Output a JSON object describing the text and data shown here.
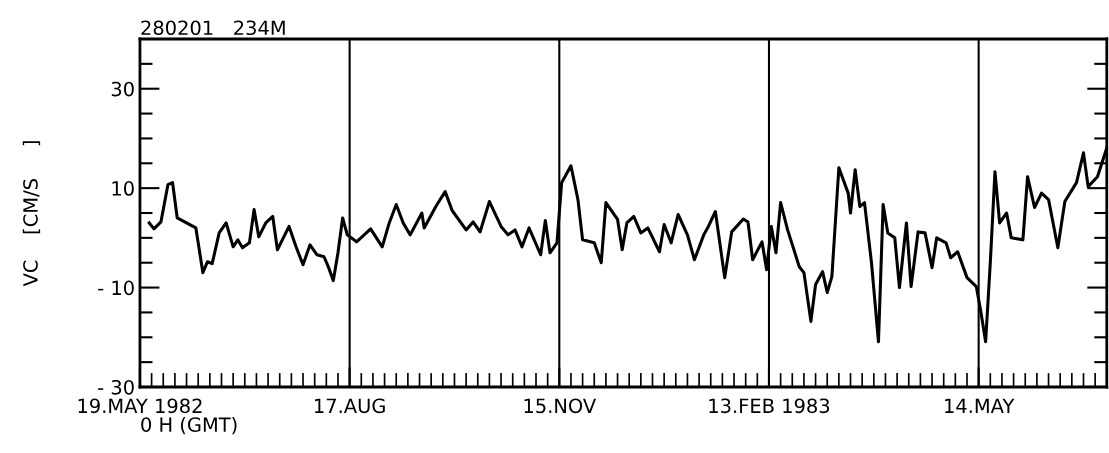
{
  "chart_data": {
    "type": "line",
    "title": "280201   234M",
    "xlabel": "0 H (GMT)",
    "ylabel": "VC    [CM/S     ]",
    "xlim": [
      "1982-05-19",
      "1983-07-08"
    ],
    "ylim": [
      -30,
      40
    ],
    "yticks": [
      {
        "value": -30,
        "label": "- 30"
      },
      {
        "value": -25,
        "label": null
      },
      {
        "value": -20,
        "label": null
      },
      {
        "value": -15,
        "label": null
      },
      {
        "value": -10,
        "label": "- 10"
      },
      {
        "value": -5,
        "label": null
      },
      {
        "value": 0,
        "label": null
      },
      {
        "value": 5,
        "label": null
      },
      10,
      {
        "value": 15,
        "label": null
      },
      {
        "value": 20,
        "label": null
      },
      {
        "value": 25,
        "label": null
      },
      30,
      {
        "value": 35,
        "label": null
      }
    ],
    "xticks": [
      {
        "value": "1982-05-19",
        "label": "19.MAY 1982"
      },
      {
        "value": "1982-05-24",
        "label": null
      },
      {
        "value": "1982-05-29",
        "label": null
      },
      {
        "value": "1982-06-03",
        "label": null
      },
      {
        "value": "1982-06-08",
        "label": null
      },
      {
        "value": "1982-06-13",
        "label": null
      },
      {
        "value": "1982-06-18",
        "label": null
      },
      {
        "value": "1982-06-23",
        "label": null
      },
      {
        "value": "1982-06-28",
        "label": null
      },
      {
        "value": "1982-07-03",
        "label": null
      },
      {
        "value": "1982-07-08",
        "label": null
      },
      {
        "value": "1982-07-13",
        "label": null
      },
      {
        "value": "1982-07-18",
        "label": null
      },
      {
        "value": "1982-07-23",
        "label": null
      },
      {
        "value": "1982-07-28",
        "label": null
      },
      {
        "value": "1982-08-02",
        "label": null
      },
      {
        "value": "1982-08-07",
        "label": null
      },
      {
        "value": "1982-08-12",
        "label": null
      },
      {
        "value": "1982-08-17",
        "label": "17.AUG"
      },
      {
        "value": "1982-08-22",
        "label": null
      },
      {
        "value": "1982-08-27",
        "label": null
      },
      {
        "value": "1982-09-01",
        "label": null
      },
      {
        "value": "1982-09-06",
        "label": null
      },
      {
        "value": "1982-09-11",
        "label": null
      },
      {
        "value": "1982-09-16",
        "label": null
      },
      {
        "value": "1982-09-21",
        "label": null
      },
      {
        "value": "1982-09-26",
        "label": null
      },
      {
        "value": "1982-10-01",
        "label": null
      },
      {
        "value": "1982-10-06",
        "label": null
      },
      {
        "value": "1982-10-11",
        "label": null
      },
      {
        "value": "1982-10-16",
        "label": null
      },
      {
        "value": "1982-10-21",
        "label": null
      },
      {
        "value": "1982-10-26",
        "label": null
      },
      {
        "value": "1982-10-31",
        "label": null
      },
      {
        "value": "1982-11-05",
        "label": null
      },
      {
        "value": "1982-11-10",
        "label": null
      },
      {
        "value": "1982-11-15",
        "label": "15.NOV"
      },
      {
        "value": "1982-11-20",
        "label": null
      },
      {
        "value": "1982-11-25",
        "label": null
      },
      {
        "value": "1982-11-30",
        "label": null
      },
      {
        "value": "1982-12-05",
        "label": null
      },
      {
        "value": "1982-12-10",
        "label": null
      },
      {
        "value": "1982-12-15",
        "label": null
      },
      {
        "value": "1982-12-20",
        "label": null
      },
      {
        "value": "1982-12-25",
        "label": null
      },
      {
        "value": "1982-12-30",
        "label": null
      },
      {
        "value": "1983-01-04",
        "label": null
      },
      {
        "value": "1983-01-09",
        "label": null
      },
      {
        "value": "1983-01-14",
        "label": null
      },
      {
        "value": "1983-01-19",
        "label": null
      },
      {
        "value": "1983-01-24",
        "label": null
      },
      {
        "value": "1983-01-29",
        "label": null
      },
      {
        "value": "1983-02-03",
        "label": null
      },
      {
        "value": "1983-02-08",
        "label": null
      },
      {
        "value": "1983-02-13",
        "label": "13.FEB 1983"
      },
      {
        "value": "1983-02-18",
        "label": null
      },
      {
        "value": "1983-02-23",
        "label": null
      },
      {
        "value": "1983-02-28",
        "label": null
      },
      {
        "value": "1983-03-05",
        "label": null
      },
      {
        "value": "1983-03-10",
        "label": null
      },
      {
        "value": "1983-03-15",
        "label": null
      },
      {
        "value": "1983-03-20",
        "label": null
      },
      {
        "value": "1983-03-25",
        "label": null
      },
      {
        "value": "1983-03-30",
        "label": null
      },
      {
        "value": "1983-04-04",
        "label": null
      },
      {
        "value": "1983-04-09",
        "label": null
      },
      {
        "value": "1983-04-14",
        "label": null
      },
      {
        "value": "1983-04-19",
        "label": null
      },
      {
        "value": "1983-04-24",
        "label": null
      },
      {
        "value": "1983-04-29",
        "label": null
      },
      {
        "value": "1983-05-04",
        "label": null
      },
      {
        "value": "1983-05-09",
        "label": null
      },
      {
        "value": "1983-05-14",
        "label": "14.MAY"
      },
      {
        "value": "1983-05-19",
        "label": null
      },
      {
        "value": "1983-05-24",
        "label": null
      },
      {
        "value": "1983-05-29",
        "label": null
      },
      {
        "value": "1983-06-03",
        "label": null
      },
      {
        "value": "1983-06-08",
        "label": null
      },
      {
        "value": "1983-06-13",
        "label": null
      },
      {
        "value": "1983-06-18",
        "label": null
      },
      {
        "value": "1983-06-23",
        "label": null
      },
      {
        "value": "1983-06-28",
        "label": null
      },
      {
        "value": "1983-07-03",
        "label": null
      }
    ],
    "ref_lines": [
      {
        "axis": "x",
        "value": "1982-08-17",
        "color": "#000000"
      },
      {
        "axis": "x",
        "value": "1982-11-15",
        "color": "#000000"
      },
      {
        "axis": "x",
        "value": "1983-02-13",
        "color": "#000000"
      },
      {
        "axis": "x",
        "value": "1983-05-14",
        "color": "#000000"
      }
    ],
    "grid": false,
    "legend": false,
    "marker": "none",
    "line_style": "solid",
    "series": [
      {
        "color": "#000000",
        "x": [
          "1982-05-23",
          "1982-05-25",
          "1982-05-28",
          "1982-05-31",
          "1982-06-02",
          "1982-06-04",
          "1982-06-08",
          "1982-06-12",
          "1982-06-15",
          "1982-06-17",
          "1982-06-19",
          "1982-06-22",
          "1982-06-25",
          "1982-06-28",
          "1982-06-30",
          "1982-07-02",
          "1982-07-05",
          "1982-07-07",
          "1982-07-09",
          "1982-07-12",
          "1982-07-15",
          "1982-07-17",
          "1982-07-22",
          "1982-07-25",
          "1982-07-28",
          "1982-07-31",
          "1982-08-03",
          "1982-08-06",
          "1982-08-08",
          "1982-08-10",
          "1982-08-12",
          "1982-08-14",
          "1982-08-16",
          "1982-08-20",
          "1982-08-26",
          "1982-08-31",
          "1982-09-03",
          "1982-09-06",
          "1982-09-09",
          "1982-09-12",
          "1982-09-17",
          "1982-09-18",
          "1982-09-23",
          "1982-09-27",
          "1982-09-30",
          "1982-10-06",
          "1982-10-09",
          "1982-10-12",
          "1982-10-16",
          "1982-10-21",
          "1982-10-24",
          "1982-10-27",
          "1982-10-30",
          "1982-11-02",
          "1982-11-07",
          "1982-11-09",
          "1982-11-11",
          "1982-11-14",
          "1982-11-16",
          "1982-11-20",
          "1982-11-23",
          "1982-11-25",
          "1982-11-30",
          "1982-12-03",
          "1982-12-05",
          "1982-12-10",
          "1982-12-12",
          "1982-12-14",
          "1982-12-17",
          "1982-12-20",
          "1982-12-23",
          "1982-12-28",
          "1982-12-30",
          "1983-01-02",
          "1983-01-05",
          "1983-01-09",
          "1983-01-12",
          "1983-01-16",
          "1983-01-18",
          "1983-01-21",
          "1983-01-25",
          "1983-01-28",
          "1983-02-02",
          "1983-02-04",
          "1983-02-06",
          "1983-02-10",
          "1983-02-12",
          "1983-02-14",
          "1983-02-16",
          "1983-02-18",
          "1983-02-21",
          "1983-02-26",
          "1983-02-28",
          "1983-03-03",
          "1983-03-05",
          "1983-03-08",
          "1983-03-10",
          "1983-03-12",
          "1983-03-15",
          "1983-03-19",
          "1983-03-20",
          "1983-03-22",
          "1983-03-24",
          "1983-03-26",
          "1983-03-29",
          "1983-04-01",
          "1983-04-03",
          "1983-04-05",
          "1983-04-08",
          "1983-04-10",
          "1983-04-13",
          "1983-04-15",
          "1983-04-18",
          "1983-04-21",
          "1983-04-24",
          "1983-04-26",
          "1983-04-30",
          "1983-05-02",
          "1983-05-05",
          "1983-05-09",
          "1983-05-13",
          "1983-05-15",
          "1983-05-17",
          "1983-05-19",
          "1983-05-21",
          "1983-05-23",
          "1983-05-26",
          "1983-05-28",
          "1983-06-02",
          "1983-06-04",
          "1983-06-07",
          "1983-06-10",
          "1983-06-13",
          "1983-06-17",
          "1983-06-20",
          "1983-06-25",
          "1983-06-28",
          "1983-06-30",
          "1983-07-04",
          "1983-07-08"
        ],
        "values": [
          3,
          1.8,
          3.2,
          10.7,
          11.1,
          4,
          3,
          2,
          -7,
          -4.8,
          -5.2,
          1,
          3,
          -1.8,
          -0.4,
          -2,
          -1,
          5.7,
          0.2,
          3,
          4.3,
          -2.4,
          2.3,
          -1.8,
          -5.4,
          -1.4,
          -3.4,
          -3.8,
          -6,
          -8.6,
          -3,
          4,
          0.6,
          -0.8,
          1.8,
          -1.8,
          3,
          6.7,
          3,
          0.6,
          5,
          2,
          6.3,
          9.3,
          5.5,
          1.6,
          3.2,
          1.2,
          7.3,
          2.3,
          0.6,
          1.6,
          -1.8,
          2,
          -3.4,
          3.5,
          -3,
          -1,
          11.1,
          14.5,
          7.7,
          -0.4,
          -1,
          -5,
          7.1,
          3.7,
          -2.4,
          3,
          4.3,
          1,
          2,
          -2.8,
          2.7,
          -1,
          4.7,
          0.6,
          -4.4,
          0.6,
          2.3,
          5.3,
          -8,
          1.2,
          3.8,
          3.2,
          -4.4,
          -0.8,
          -6.4,
          2.3,
          -3,
          7.1,
          1.6,
          -5.8,
          -7,
          -16.8,
          -9.4,
          -6.8,
          -11,
          -7.8,
          14.1,
          9,
          5,
          13.7,
          6.3,
          7.1,
          -5,
          -20.9,
          6.7,
          1,
          0,
          -10,
          3,
          -9.8,
          1.2,
          1,
          -6,
          0,
          -1,
          -4,
          -2.8,
          -8,
          -9.8,
          -15,
          -20.9,
          -5,
          13.3,
          3,
          5,
          0,
          -0.4,
          12.3,
          6.1,
          9,
          7.7,
          -2,
          7.3,
          11.1,
          17.1,
          10.3,
          12.3,
          18.1
        ]
      }
    ]
  }
}
